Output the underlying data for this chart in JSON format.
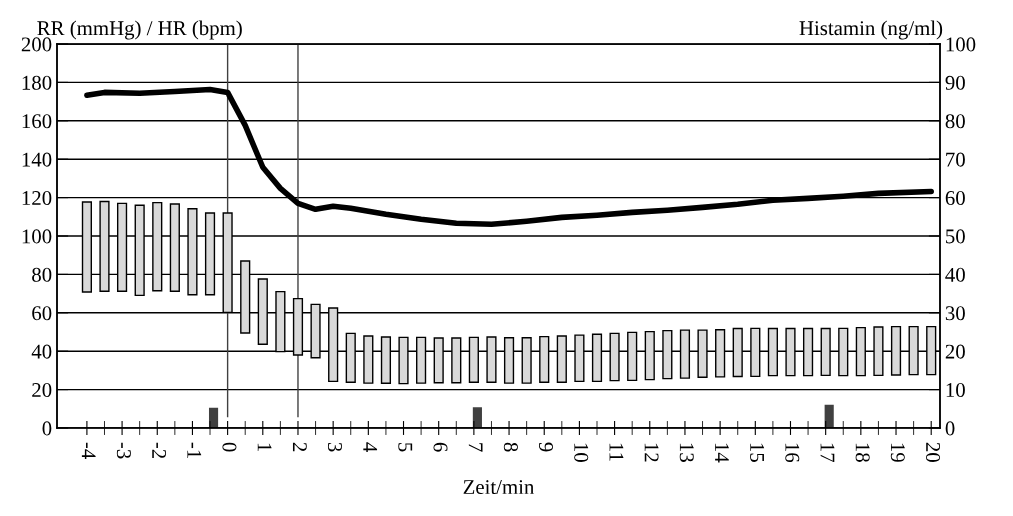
{
  "chart_data": {
    "type": "bar",
    "xlabel": "Zeit/min",
    "ylabel": "RR (mmHg) / HR (bpm)",
    "y2label": "Histamin (ng/ml)",
    "xlim": [
      -4.85,
      20.25
    ],
    "ylim": [
      0,
      200
    ],
    "yticks": [
      0,
      20,
      40,
      60,
      80,
      100,
      120,
      140,
      160,
      180,
      200
    ],
    "y2lim": [
      0,
      100
    ],
    "y2ticks": [
      0,
      10,
      20,
      30,
      40,
      50,
      60,
      70,
      80,
      90,
      100
    ],
    "xticks": [
      -4,
      -3,
      -2,
      -1,
      0,
      1,
      2,
      3,
      4,
      5,
      6,
      7,
      8,
      9,
      10,
      11,
      12,
      13,
      14,
      15,
      16,
      17,
      18,
      19,
      20
    ],
    "grid": "y",
    "ref_lines": [
      {
        "axis": "x",
        "value": 0,
        "color": "#404040"
      },
      {
        "axis": "x",
        "value": 2,
        "color": "#404040"
      }
    ],
    "series": [
      {
        "color": "#d9d9d9",
        "x": [
          -4,
          -3.5,
          -3,
          -2.5,
          -2,
          -1.5,
          -1,
          -0.5,
          0,
          0.5,
          1,
          1.5,
          2,
          2.5,
          3,
          3.5,
          4,
          4.5,
          5,
          5.5,
          6,
          6.5,
          7,
          7.5,
          8,
          8.5,
          9,
          9.5,
          10,
          10.5,
          11,
          11.5,
          12,
          12.5,
          13,
          13.5,
          14,
          14.5,
          15,
          15.5,
          16,
          16.5,
          17,
          17.5,
          18,
          18.5,
          19,
          19.5,
          20
        ],
        "base": [
          70.8,
          71.2,
          71.2,
          69.1,
          71.5,
          71.2,
          69.4,
          69.4,
          60.2,
          49.5,
          43.6,
          39.8,
          38.0,
          36.6,
          24.3,
          23.8,
          23.4,
          23.3,
          23.1,
          23.4,
          23.6,
          23.6,
          23.8,
          23.8,
          23.4,
          23.4,
          23.8,
          23.8,
          24.3,
          24.3,
          24.7,
          24.8,
          25.2,
          25.7,
          26.0,
          26.4,
          26.6,
          26.8,
          26.9,
          27.3,
          27.3,
          27.3,
          27.4,
          27.3,
          27.3,
          27.4,
          27.6,
          27.8,
          27.8
        ],
        "values": [
          46.9,
          46.8,
          45.8,
          46.9,
          45.9,
          45.5,
          44.8,
          42.6,
          51.8,
          37.5,
          34.0,
          31.2,
          29.4,
          27.8,
          38.2,
          25.5,
          24.5,
          24.1,
          24.1,
          23.8,
          23.3,
          23.3,
          23.4,
          23.6,
          23.6,
          23.6,
          23.8,
          24.1,
          24.1,
          24.5,
          24.6,
          25.0,
          25.0,
          25.0,
          25.0,
          24.6,
          24.6,
          25.0,
          25.0,
          24.5,
          24.5,
          24.5,
          24.4,
          24.6,
          25.0,
          25.2,
          25.2,
          25.0,
          25.0
        ]
      },
      {
        "type": "line",
        "color": "#000000",
        "x": [
          -4,
          -3.5,
          -2.5,
          -1.5,
          -0.5,
          0,
          0.5,
          1,
          1.5,
          2,
          2.5,
          3,
          3.5,
          4.5,
          5.5,
          6.5,
          7.5,
          8.5,
          9.5,
          10.5,
          11.5,
          12.5,
          13.5,
          14.5,
          15.5,
          16.5,
          17.5,
          18.5,
          20
        ],
        "values": [
          173.3,
          174.8,
          174.3,
          175.3,
          176.3,
          174.8,
          157.6,
          135.8,
          124.8,
          117.0,
          113.9,
          115.5,
          114.4,
          111.3,
          108.7,
          106.6,
          106.1,
          107.7,
          109.7,
          110.8,
          112.3,
          113.4,
          114.9,
          116.5,
          118.6,
          119.6,
          120.7,
          122.2,
          123.2
        ]
      },
      {
        "type": "bar",
        "axis": "y2",
        "color": "#404040",
        "x": [
          -0.4,
          7.1,
          17.1
        ],
        "values": [
          5.1,
          5.2,
          5.9
        ]
      }
    ]
  }
}
